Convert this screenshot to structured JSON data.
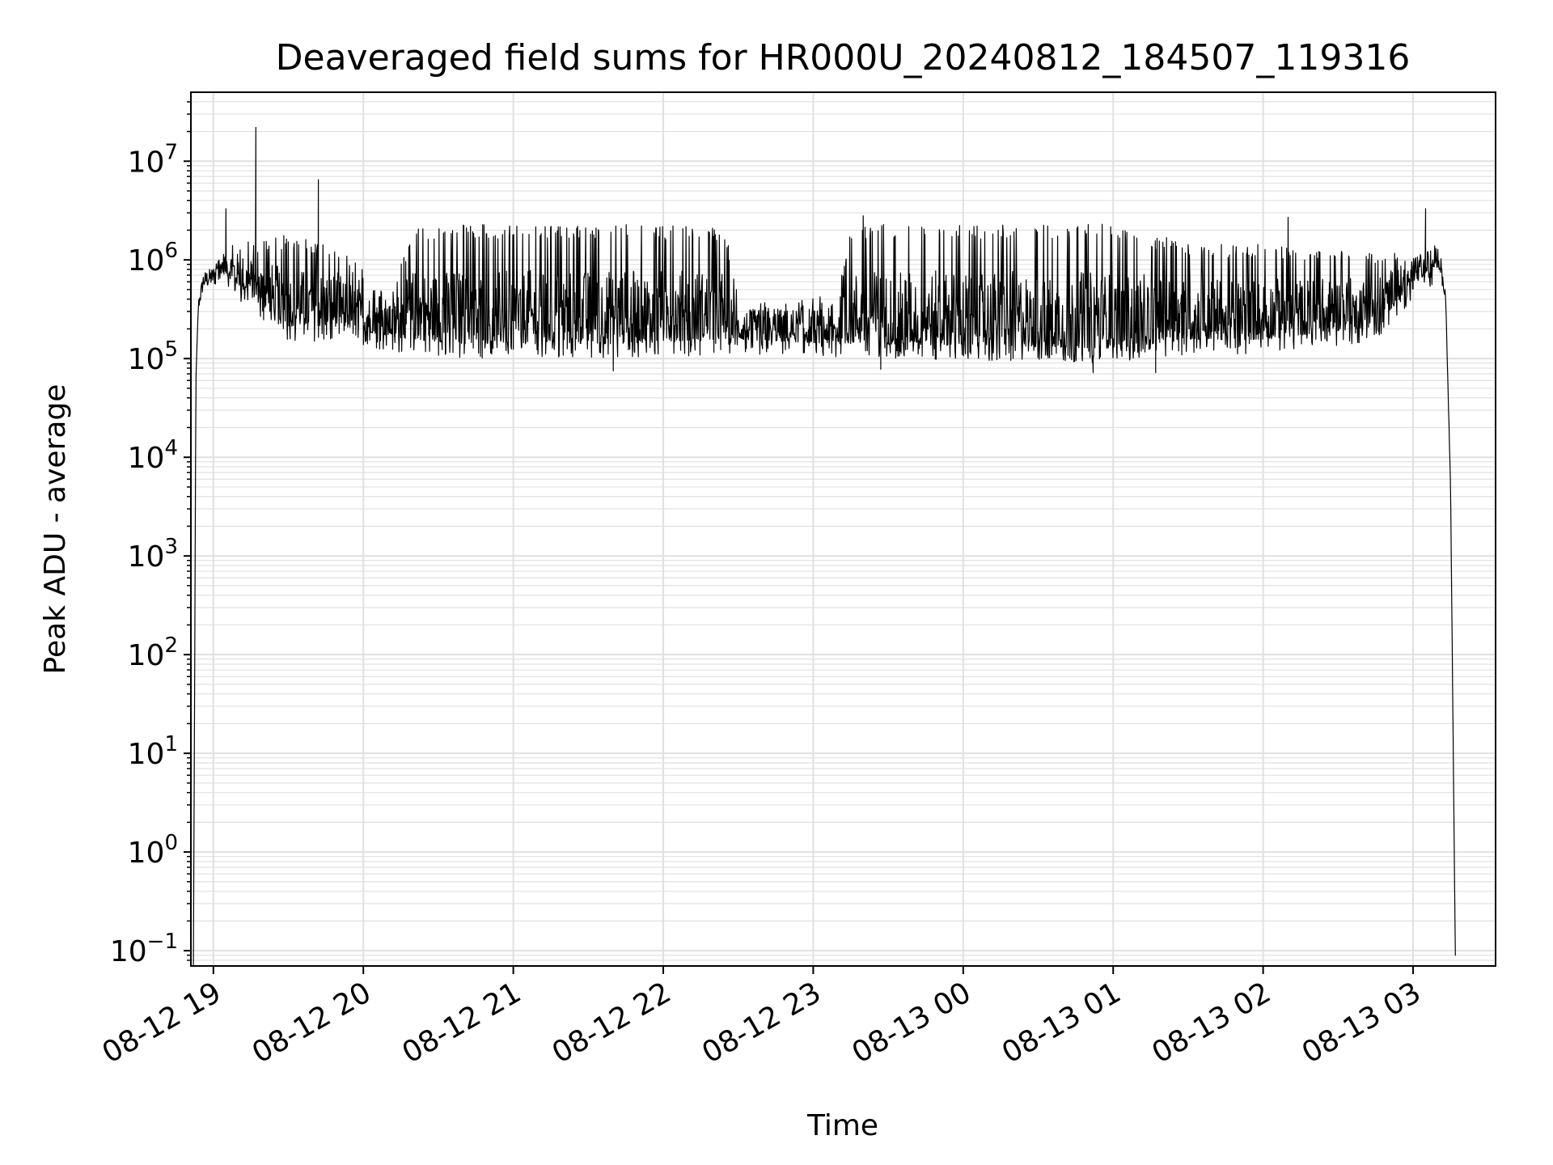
{
  "chart_data": {
    "type": "line",
    "title": "Deaveraged field sums for HR000U_20240812_184507_119316",
    "xlabel": "Time",
    "ylabel": "Peak ADU - average",
    "yscale": "log",
    "ylim": [
      0.07,
      50000000.0
    ],
    "xlim": [
      "2024-08-12 18:51",
      "2024-08-13 03:33"
    ],
    "grid": true,
    "line_color": "#000000",
    "grid_color": "#e0e0e0",
    "x_ticks": [
      {
        "t": "2024-08-12 19:00",
        "label": "08-12 19"
      },
      {
        "t": "2024-08-12 20:00",
        "label": "08-12 20"
      },
      {
        "t": "2024-08-12 21:00",
        "label": "08-12 21"
      },
      {
        "t": "2024-08-12 22:00",
        "label": "08-12 22"
      },
      {
        "t": "2024-08-12 23:00",
        "label": "08-12 23"
      },
      {
        "t": "2024-08-13 00:00",
        "label": "08-13 00"
      },
      {
        "t": "2024-08-13 01:00",
        "label": "08-13 01"
      },
      {
        "t": "2024-08-13 02:00",
        "label": "08-13 02"
      },
      {
        "t": "2024-08-13 03:00",
        "label": "08-13 03"
      }
    ],
    "y_ticks": [
      {
        "value": 0.1,
        "base": "10",
        "exp": "−1"
      },
      {
        "value": 1,
        "base": "10",
        "exp": "0"
      },
      {
        "value": 10,
        "base": "10",
        "exp": "1"
      },
      {
        "value": 100,
        "base": "10",
        "exp": "2"
      },
      {
        "value": 1000,
        "base": "10",
        "exp": "3"
      },
      {
        "value": 10000,
        "base": "10",
        "exp": "4"
      },
      {
        "value": 100000,
        "base": "10",
        "exp": "5"
      },
      {
        "value": 1000000,
        "base": "10",
        "exp": "6"
      },
      {
        "value": 10000000,
        "base": "10",
        "exp": "7"
      }
    ],
    "series": [
      {
        "envelope": [
          {
            "t": "2024-08-12 18:52",
            "low": 0.05,
            "high": 0.05
          },
          {
            "t": "2024-08-12 18:53",
            "low": 60000,
            "high": 60000
          },
          {
            "t": "2024-08-12 18:54",
            "low": 300000,
            "high": 400000
          },
          {
            "t": "2024-08-12 18:56",
            "low": 500000,
            "high": 750000
          },
          {
            "t": "2024-08-12 19:00",
            "low": 550000,
            "high": 850000
          },
          {
            "t": "2024-08-12 19:05",
            "low": 500000,
            "high": 1500000
          },
          {
            "t": "2024-08-12 19:15",
            "low": 300000,
            "high": 1600000
          },
          {
            "t": "2024-08-12 19:30",
            "low": 150000,
            "high": 1800000
          },
          {
            "t": "2024-08-12 19:50",
            "low": 150000,
            "high": 1500000
          },
          {
            "t": "2024-08-12 20:10",
            "low": 120000,
            "high": 400000
          },
          {
            "t": "2024-08-12 20:20",
            "low": 110000,
            "high": 2200000
          },
          {
            "t": "2024-08-12 20:40",
            "low": 100000,
            "high": 2300000
          },
          {
            "t": "2024-08-12 21:40",
            "low": 100000,
            "high": 2300000
          },
          {
            "t": "2024-08-12 22:25",
            "low": 110000,
            "high": 2200000
          },
          {
            "t": "2024-08-12 22:30",
            "low": 110000,
            "high": 400000
          },
          {
            "t": "2024-08-12 23:10",
            "low": 100000,
            "high": 450000
          },
          {
            "t": "2024-08-12 23:15",
            "low": 100000,
            "high": 2300000
          },
          {
            "t": "2024-08-13 01:00",
            "low": 90000,
            "high": 2300000
          },
          {
            "t": "2024-08-13 01:30",
            "low": 110000,
            "high": 1500000
          },
          {
            "t": "2024-08-13 02:00",
            "low": 110000,
            "high": 1500000
          },
          {
            "t": "2024-08-13 02:45",
            "low": 150000,
            "high": 1200000
          },
          {
            "t": "2024-08-13 03:00",
            "low": 400000,
            "high": 1200000
          },
          {
            "t": "2024-08-13 03:10",
            "low": 600000,
            "high": 1500000
          },
          {
            "t": "2024-08-13 03:13",
            "low": 400000,
            "high": 500000
          },
          {
            "t": "2024-08-13 03:15",
            "low": 5000,
            "high": 5000
          },
          {
            "t": "2024-08-13 03:17",
            "low": 0.05,
            "high": 0.05
          }
        ],
        "spikes": [
          {
            "t": "2024-08-12 19:05",
            "value": 3300000
          },
          {
            "t": "2024-08-12 19:17",
            "value": 22000000
          },
          {
            "t": "2024-08-12 19:42",
            "value": 6500000
          },
          {
            "t": "2024-08-12 23:20",
            "value": 2800000
          },
          {
            "t": "2024-08-13 02:10",
            "value": 2700000
          },
          {
            "t": "2024-08-13 03:05",
            "value": 3300000
          }
        ],
        "dips": [
          {
            "t": "2024-08-12 21:40",
            "value": 75000
          },
          {
            "t": "2024-08-12 23:27",
            "value": 78000
          },
          {
            "t": "2024-08-13 00:52",
            "value": 72000
          },
          {
            "t": "2024-08-13 01:17",
            "value": 72000
          }
        ]
      }
    ]
  }
}
